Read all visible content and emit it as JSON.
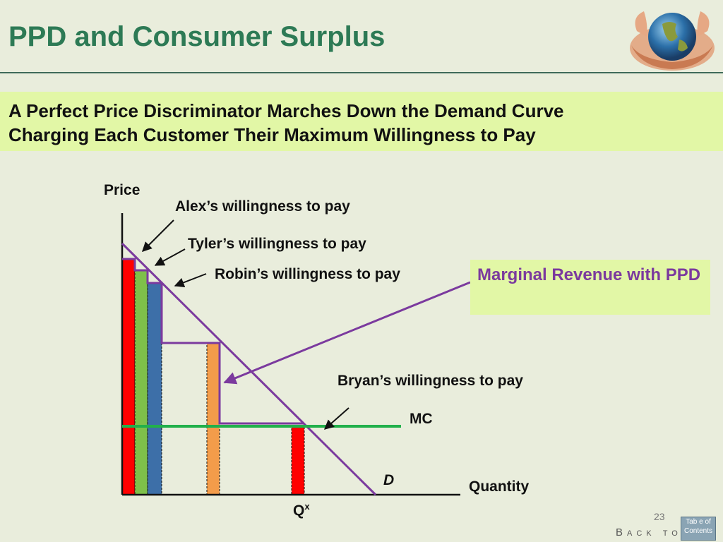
{
  "slide": {
    "title": "PPD and Consumer Surplus",
    "subtitle_line1": "A Perfect Price Discriminator Marches Down the Demand Curve",
    "subtitle_line2": "Charging Each Customer Their Maximum Willingness to Pay",
    "page_number": "23",
    "back_to_label": "Back to",
    "toc_button_label": "Tab e of Contents",
    "globe_icon": "globe-in-hands-icon"
  },
  "diagram": {
    "y_axis_label": "Price",
    "x_axis_label": "Quantity",
    "qx_label": "Q",
    "qx_superscript": "x",
    "demand_label": "D",
    "mc_label": "MC",
    "annotations": {
      "alex": "Alex’s willingness to pay",
      "tyler": "Tyler’s willingness to pay",
      "robin": "Robin’s willingness to pay",
      "bryan": "Bryan’s willingness to pay"
    },
    "mr_box_text": "Marginal Revenue with PPD",
    "colors": {
      "demand": "#7b3a9e",
      "mr_step": "#7b3a9e",
      "mc": "#22b04b",
      "bar_alex": "#ff0000",
      "bar_tyler": "#7ec04a",
      "bar_robin": "#3d6fa8",
      "bar_4": "#f39c4a",
      "bar_bryan": "#ff0000",
      "title": "#2d7a55",
      "highlight": "#e2f7a6"
    }
  }
}
